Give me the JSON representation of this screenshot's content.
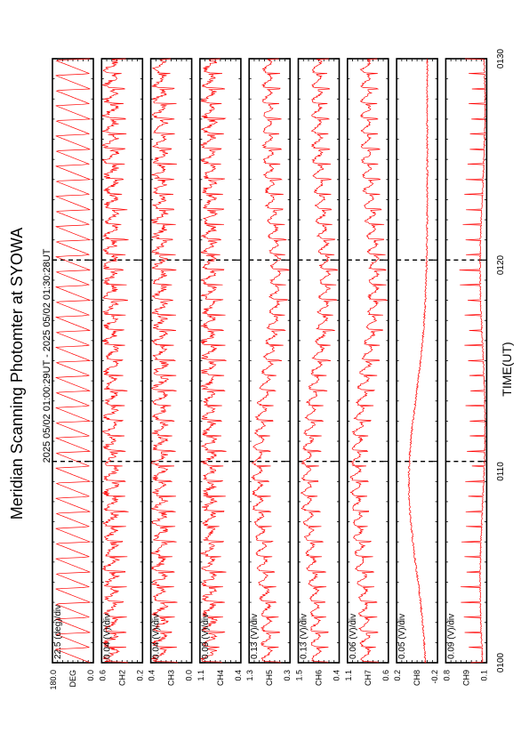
{
  "title": "Meridian Scanning Photomter at SYOWA",
  "time_range": "2025 05/02 01:00:29UT - 2025 05/02 01:30:28UT",
  "xlabel": "TIME(UT)",
  "trace_color": "#ff0000",
  "chart_data": {
    "type": "line",
    "orientation": "rotated-90",
    "x_ticks": [
      "0100",
      "0110",
      "0120",
      "0130"
    ],
    "x_range_minutes": [
      0,
      30
    ],
    "panels": [
      {
        "id": "angle",
        "scale": "22.5 (deg)/div",
        "tick_top": "180.0",
        "tick_bottom": "0.0",
        "unit": "DEG",
        "ylim": [
          0,
          180
        ],
        "pattern": "sawtooth"
      },
      {
        "id": "ch2",
        "scale": "0.04 (V)/div",
        "tick_top": "0.6",
        "tick_bottom": "0.2",
        "unit": "CH2",
        "ylim": [
          0.2,
          0.6
        ],
        "pattern": "noisy-high"
      },
      {
        "id": "ch3",
        "scale": "0.04 (V)/div",
        "tick_top": "0.4",
        "tick_bottom": "0.0",
        "unit": "CH3",
        "ylim": [
          0.0,
          0.4
        ],
        "pattern": "noisy-high"
      },
      {
        "id": "ch4",
        "scale": "0.09 (V)/div",
        "tick_top": "1.1",
        "tick_bottom": "0.4",
        "unit": "CH4",
        "ylim": [
          0.4,
          1.1
        ],
        "pattern": "noisy-high"
      },
      {
        "id": "ch5",
        "scale": "0.13 (V)/div",
        "tick_top": "1.3",
        "tick_bottom": "0.3",
        "unit": "CH5",
        "ylim": [
          0.3,
          1.3
        ],
        "pattern": "dip-mid"
      },
      {
        "id": "ch6",
        "scale": "0.13 (V)/div",
        "tick_top": "1.5",
        "tick_bottom": "0.4",
        "unit": "CH6",
        "ylim": [
          0.4,
          1.5
        ],
        "pattern": "dip-mid"
      },
      {
        "id": "ch7",
        "scale": "0.06 (V)/div",
        "tick_top": "1.1",
        "tick_bottom": "0.6",
        "unit": "CH7",
        "ylim": [
          0.6,
          1.1
        ],
        "pattern": "dip-mid"
      },
      {
        "id": "ch8",
        "scale": "0.05 (V)/div",
        "tick_top": "0.2",
        "tick_bottom": "-0.2",
        "unit": "CH8",
        "ylim": [
          -0.2,
          0.2
        ],
        "pattern": "smooth-low"
      },
      {
        "id": "ch9",
        "scale": "0.09 (V)/div",
        "tick_top": "0.8",
        "tick_bottom": "0.1",
        "unit": "CH9",
        "ylim": [
          0.1,
          0.8
        ],
        "pattern": "spikes-low"
      }
    ]
  }
}
